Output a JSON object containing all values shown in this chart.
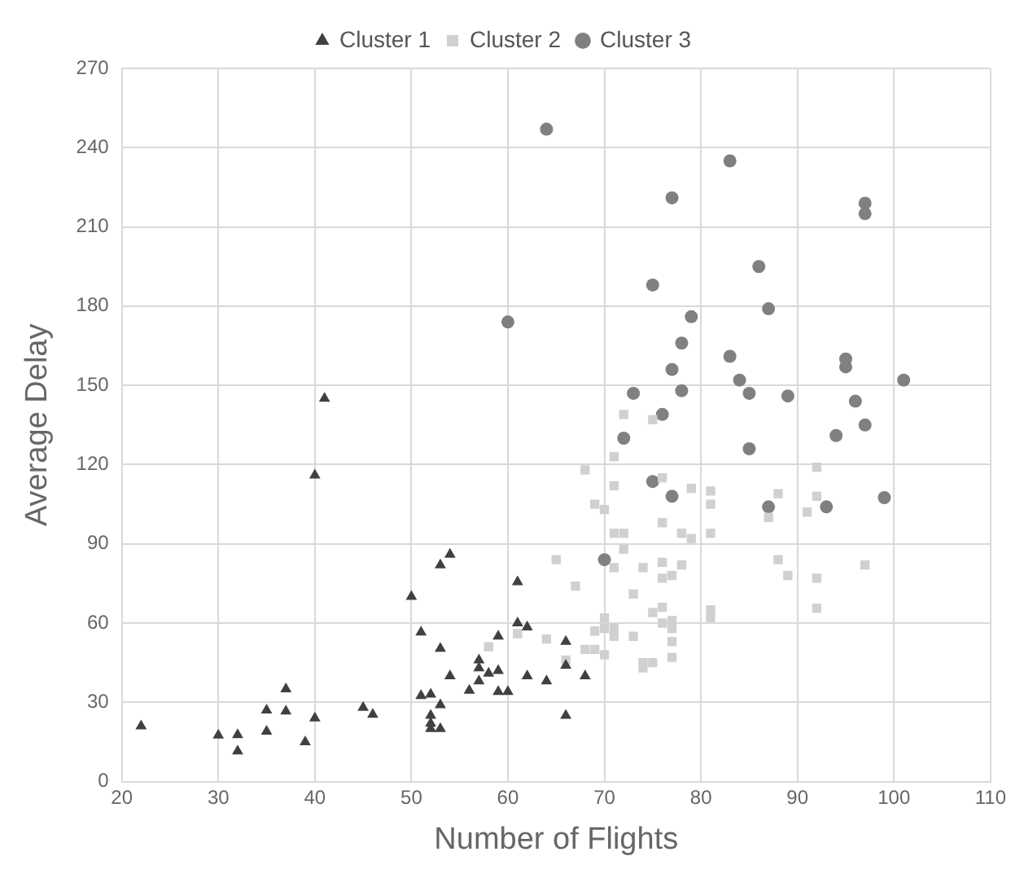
{
  "chart_data": {
    "type": "scatter",
    "xlabel": "Number of Flights",
    "ylabel": "Average Delay",
    "xlim": [
      20,
      110
    ],
    "xticks": [
      20,
      30,
      40,
      50,
      60,
      70,
      80,
      90,
      100,
      110
    ],
    "ylim": [
      0,
      270
    ],
    "yticks": [
      0,
      30,
      60,
      90,
      120,
      150,
      180,
      210,
      240,
      270
    ],
    "grid": true,
    "legend": "top",
    "series": [
      {
        "name": "Cluster 1",
        "color": "#404040",
        "marker": "triangle",
        "x": [
          22,
          30,
          32,
          32,
          35,
          35,
          37,
          37,
          39,
          40,
          40,
          41,
          45,
          46,
          50,
          51,
          51,
          52,
          53,
          53,
          54,
          54,
          53,
          52,
          52,
          52,
          53,
          56,
          57,
          57,
          57,
          58,
          59,
          59,
          59,
          60,
          61,
          61,
          62,
          62,
          64,
          66,
          66,
          66,
          68
        ],
        "values": [
          21,
          17.5,
          17.7,
          11.5,
          27,
          19,
          35,
          26.6,
          15,
          24,
          116,
          145,
          28,
          25.4,
          70,
          56.5,
          32.5,
          33,
          50.4,
          82,
          86,
          40,
          29,
          25,
          22,
          20,
          20,
          34.5,
          46,
          43,
          38,
          41,
          55,
          42,
          34,
          34,
          75.6,
          60,
          58.5,
          40,
          38,
          53,
          44,
          25,
          40
        ]
      },
      {
        "name": "Cluster 2",
        "color": "#d0d0d0",
        "marker": "square",
        "x": [
          71,
          68,
          76,
          71,
          79,
          81,
          81,
          69,
          70,
          76,
          78,
          79,
          81,
          71,
          72,
          72,
          65,
          71,
          74,
          76,
          76,
          77,
          78,
          67,
          73,
          75,
          76,
          81,
          81,
          70,
          69,
          70,
          71,
          71,
          73,
          76,
          77,
          77,
          77,
          77,
          74,
          74,
          75,
          70,
          69,
          68,
          61,
          58,
          64,
          66,
          72,
          75,
          92,
          88,
          92,
          91,
          87,
          88,
          89,
          92,
          92,
          97
        ],
        "values": [
          123,
          118,
          115,
          112,
          111,
          110,
          105,
          105,
          103,
          98,
          94,
          92,
          94,
          94,
          94,
          88,
          84,
          81,
          81,
          83,
          77,
          78,
          82,
          74,
          71,
          64,
          66,
          65,
          62,
          62,
          57,
          58,
          58,
          55,
          55,
          60,
          61,
          58,
          53,
          47,
          45,
          43,
          45,
          48,
          50,
          50,
          56,
          51,
          54,
          46,
          139,
          137,
          119,
          109,
          108,
          102,
          100,
          84,
          78,
          77,
          65.6,
          82
        ]
      },
      {
        "name": "Cluster 3",
        "color": "#808080",
        "marker": "circle",
        "x": [
          64,
          60,
          83,
          77,
          86,
          75,
          87,
          79,
          78,
          83,
          77,
          84,
          78,
          85,
          73,
          76,
          72,
          85,
          75,
          77,
          87,
          70,
          97,
          97,
          95,
          95,
          101,
          89,
          96,
          97,
          94,
          93,
          99
        ],
        "values": [
          247,
          174,
          235,
          221,
          195,
          188,
          179,
          176,
          166,
          161,
          156,
          152,
          148,
          147,
          147,
          139,
          130,
          126,
          113.6,
          108,
          104,
          84,
          219,
          215,
          160,
          157,
          152,
          146,
          144,
          135,
          131,
          104,
          107.5
        ]
      }
    ]
  }
}
